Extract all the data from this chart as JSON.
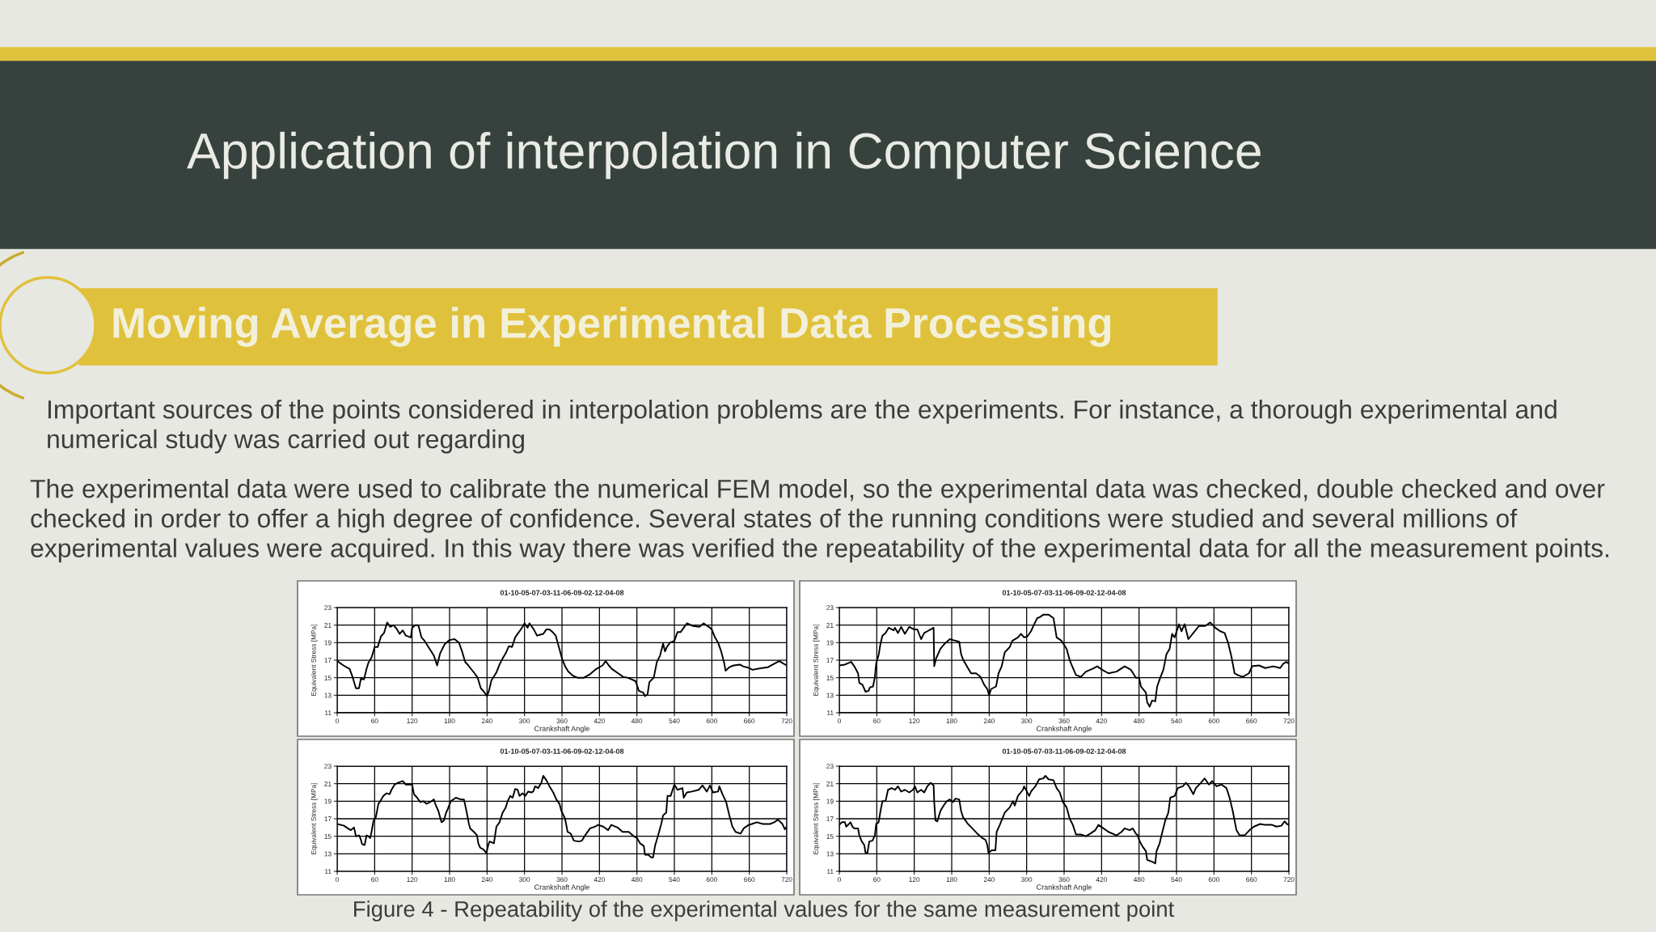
{
  "chart_data": [
    {
      "type": "other",
      "title": "Application of interpolation in Computer Science",
      "subtitle": "Moving Average in Experimental Data Processing",
      "annotations": [
        "Important sources of the points considered in interpolation problems are the experiments. For instance, a thorough experimental and numerical study was carried out regarding",
        "The experimental data were used to calibrate the numerical FEM model, so the experimental data was checked, double checked and over checked in order to offer a high degree of confidence. Several states of the running conditions were studied and several millions of experimental values were acquired. In this way there was verified the repeatability of the experimental data for all the measurement points.",
        "Figure 4 - Repeatability of the experimental values for the same measurement point"
      ]
    },
    {
      "type": "line",
      "title": "01-10-05-07-03-11-06-09-02-12-04-08",
      "xlabel": "Crankshaft Angle",
      "ylabel": "Equivalent Stress [MPa]",
      "xlim": [
        0,
        720
      ],
      "xticks": [
        0,
        60,
        120,
        180,
        240,
        300,
        360,
        420,
        480,
        540,
        600,
        660,
        720
      ],
      "ylim": [
        11,
        23
      ],
      "yticks": [
        11,
        13,
        15,
        17,
        19,
        21,
        23
      ],
      "grid": true,
      "series": [
        {
          "color": "#000000",
          "x": [
            0,
            10,
            20,
            25,
            30,
            35,
            38,
            43,
            47,
            50,
            55,
            60,
            65,
            70,
            75,
            80,
            85,
            90,
            95,
            100,
            105,
            110,
            118,
            120,
            125,
            130,
            135,
            140,
            148,
            155,
            160,
            165,
            172,
            180,
            188,
            195,
            200,
            205,
            210,
            220,
            225,
            230,
            235,
            240,
            243,
            247,
            255,
            260,
            265,
            270,
            275,
            280,
            285,
            290,
            295,
            300,
            305,
            308,
            315,
            320,
            330,
            335,
            340,
            345,
            350,
            355,
            360,
            365,
            370,
            378,
            385,
            395,
            405,
            415,
            425,
            430,
            435,
            440,
            450,
            458,
            465,
            472,
            478,
            483,
            490,
            493,
            497,
            500,
            507,
            512,
            517,
            522,
            525,
            528,
            533,
            540,
            545,
            550,
            555,
            560,
            570,
            580,
            587,
            595,
            600,
            605,
            610,
            615,
            620,
            622,
            628,
            635,
            645,
            650,
            660,
            665,
            680,
            690,
            700,
            708,
            715,
            720
          ],
          "values": [
            16.9,
            16.4,
            16.0,
            15.0,
            13.8,
            13.8,
            14.9,
            14.8,
            16.0,
            16.7,
            17.3,
            18.5,
            18.5,
            19.7,
            20.1,
            21.3,
            20.8,
            21.0,
            20.6,
            20.0,
            20.4,
            19.8,
            19.6,
            20.7,
            21.0,
            21.0,
            19.6,
            19.2,
            18.3,
            17.5,
            16.4,
            17.8,
            18.8,
            19.3,
            19.4,
            19.0,
            18.0,
            16.8,
            16.4,
            15.5,
            15.0,
            13.8,
            13.4,
            12.9,
            13.5,
            14.7,
            15.6,
            16.5,
            17.2,
            17.8,
            18.6,
            18.5,
            19.6,
            20.1,
            20.6,
            21.2,
            20.7,
            21.2,
            20.5,
            19.8,
            20.0,
            20.5,
            20.5,
            20.2,
            19.8,
            18.5,
            17.2,
            16.3,
            15.7,
            15.2,
            15.0,
            15.0,
            15.4,
            16.0,
            16.4,
            16.9,
            16.4,
            16.0,
            15.5,
            15.1,
            15.0,
            14.8,
            14.6,
            13.5,
            13.3,
            12.9,
            13.1,
            14.5,
            15.0,
            16.8,
            17.5,
            18.9,
            18.0,
            18.5,
            19.0,
            19.2,
            20.2,
            20.2,
            20.7,
            21.2,
            20.9,
            20.8,
            21.2,
            20.8,
            20.5,
            19.6,
            19.0,
            18.0,
            16.6,
            15.8,
            16.2,
            16.4,
            16.5,
            16.3,
            16.1,
            15.9,
            16.1,
            16.2,
            16.6,
            16.9,
            16.6,
            16.4
          ]
        }
      ]
    },
    {
      "type": "line",
      "title": "01-10-05-07-03-11-06-09-02-12-04-08",
      "xlabel": "Crankshaft Angle",
      "ylabel": "Equivalent Stress [MPa]",
      "xlim": [
        0,
        720
      ],
      "xticks": [
        0,
        60,
        120,
        180,
        240,
        300,
        360,
        420,
        480,
        540,
        600,
        660,
        720
      ],
      "ylim": [
        11,
        23
      ],
      "yticks": [
        11,
        13,
        15,
        17,
        19,
        21,
        23
      ],
      "grid": true,
      "series": [
        {
          "color": "#000000",
          "x": [
            0,
            9,
            19,
            24,
            30,
            32,
            37,
            42,
            47,
            49,
            54,
            57,
            59,
            63,
            66,
            69,
            74,
            79,
            87,
            89,
            94,
            99,
            105,
            112,
            120,
            125,
            131,
            136,
            141,
            146,
            151,
            152,
            155,
            162,
            169,
            177,
            182,
            192,
            195,
            198,
            206,
            211,
            219,
            226,
            232,
            237,
            240,
            243,
            251,
            255,
            260,
            265,
            273,
            277,
            286,
            291,
            296,
            301,
            307,
            312,
            317,
            321,
            327,
            335,
            343,
            346,
            348,
            356,
            364,
            369,
            373,
            379,
            387,
            395,
            405,
            413,
            421,
            431,
            444,
            457,
            467,
            475,
            480,
            483,
            491,
            493,
            497,
            501,
            506,
            509,
            514,
            519,
            524,
            529,
            533,
            537,
            544,
            548,
            553,
            559,
            567,
            576,
            586,
            594,
            602,
            610,
            617,
            623,
            628,
            633,
            638,
            646,
            656,
            661,
            672,
            682,
            695,
            706,
            711,
            716,
            720
          ],
          "values": [
            16.4,
            16.5,
            16.8,
            16.3,
            15.5,
            14.4,
            14.2,
            13.4,
            13.5,
            13.9,
            14.0,
            15.1,
            16.6,
            17.6,
            18.9,
            19.8,
            20.1,
            20.7,
            20.4,
            20.7,
            20.1,
            20.8,
            20.0,
            20.8,
            20.5,
            20.5,
            19.4,
            20.1,
            20.3,
            20.5,
            20.7,
            16.3,
            17.2,
            18.3,
            18.9,
            19.4,
            19.3,
            19.1,
            17.7,
            17.1,
            16.1,
            15.5,
            15.5,
            15.1,
            14.2,
            13.7,
            13.0,
            13.7,
            14.0,
            15.5,
            16.3,
            17.9,
            18.5,
            19.2,
            19.6,
            20.0,
            19.6,
            19.7,
            20.3,
            21.1,
            21.8,
            21.9,
            22.2,
            22.2,
            21.8,
            20.5,
            19.6,
            19.2,
            18.3,
            17.0,
            16.3,
            15.3,
            15.1,
            15.7,
            16.0,
            16.3,
            15.9,
            15.5,
            15.7,
            16.3,
            15.9,
            15.0,
            15.0,
            14.0,
            13.3,
            12.2,
            11.7,
            12.4,
            12.3,
            14.0,
            15.0,
            15.9,
            17.7,
            18.3,
            20.0,
            19.6,
            21.1,
            20.3,
            21.1,
            19.4,
            20.1,
            20.9,
            20.9,
            21.3,
            20.7,
            20.3,
            20.1,
            18.9,
            17.4,
            15.5,
            15.3,
            15.1,
            15.5,
            16.3,
            16.4,
            16.1,
            16.3,
            16.1,
            16.6,
            16.8,
            16.6
          ]
        }
      ]
    },
    {
      "type": "line",
      "title": "01-10-05-07-03-11-06-09-02-12-04-08",
      "xlabel": "Crankshaft Angle",
      "ylabel": "Equivalent Stress [MPa]",
      "xlim": [
        0,
        720
      ],
      "xticks": [
        0,
        60,
        120,
        180,
        240,
        300,
        360,
        420,
        480,
        540,
        600,
        660,
        720
      ],
      "ylim": [
        11,
        23
      ],
      "yticks": [
        11,
        13,
        15,
        17,
        19,
        21,
        23
      ],
      "grid": true,
      "series": [
        {
          "color": "#000000",
          "x": [
            0,
            6,
            11,
            17,
            22,
            27,
            30,
            35,
            37,
            40,
            44,
            47,
            50,
            53,
            55,
            58,
            62,
            66,
            69,
            74,
            79,
            84,
            87,
            92,
            97,
            105,
            110,
            118,
            120,
            123,
            128,
            133,
            138,
            143,
            151,
            155,
            157,
            162,
            167,
            171,
            174,
            177,
            182,
            190,
            198,
            203,
            207,
            211,
            213,
            219,
            224,
            226,
            229,
            234,
            239,
            242,
            244,
            251,
            255,
            260,
            265,
            270,
            273,
            277,
            281,
            285,
            289,
            292,
            297,
            301,
            306,
            311,
            314,
            317,
            322,
            327,
            330,
            335,
            340,
            346,
            351,
            356,
            359,
            365,
            369,
            374,
            379,
            387,
            392,
            397,
            405,
            413,
            418,
            426,
            434,
            439,
            449,
            457,
            467,
            475,
            480,
            485,
            491,
            493,
            498,
            503,
            506,
            509,
            514,
            519,
            522,
            527,
            529,
            534,
            540,
            545,
            553,
            555,
            560,
            568,
            579,
            585,
            592,
            597,
            602,
            610,
            612,
            617,
            623,
            628,
            633,
            638,
            646,
            651,
            659,
            664,
            672,
            682,
            693,
            700,
            706,
            713,
            717,
            720
          ],
          "values": [
            16.4,
            16.3,
            16.2,
            15.9,
            15.7,
            16.0,
            15.0,
            15.1,
            14.8,
            14.1,
            14.0,
            15.1,
            15.0,
            14.8,
            15.5,
            16.7,
            17.2,
            18.7,
            19.0,
            19.6,
            19.9,
            19.8,
            20.3,
            20.9,
            21.1,
            21.3,
            20.9,
            20.9,
            20.9,
            19.8,
            19.4,
            18.9,
            19.0,
            18.7,
            19.0,
            19.2,
            18.7,
            17.9,
            16.6,
            16.8,
            17.6,
            18.1,
            19.0,
            19.4,
            19.2,
            19.2,
            17.9,
            16.4,
            15.9,
            15.5,
            15.1,
            14.2,
            13.7,
            13.5,
            13.1,
            14.0,
            14.4,
            14.2,
            16.1,
            16.6,
            17.7,
            18.3,
            19.0,
            19.6,
            19.4,
            20.4,
            20.3,
            19.6,
            19.9,
            19.6,
            20.1,
            20.0,
            20.1,
            20.7,
            20.5,
            21.1,
            21.9,
            21.4,
            20.7,
            20.0,
            19.2,
            18.7,
            17.9,
            17.0,
            15.5,
            15.3,
            14.5,
            14.4,
            14.5,
            15.1,
            15.9,
            16.1,
            16.3,
            16.1,
            15.7,
            16.3,
            16.0,
            15.5,
            15.5,
            15.0,
            14.8,
            14.2,
            13.9,
            12.9,
            12.9,
            12.6,
            12.6,
            13.9,
            15.1,
            16.4,
            17.4,
            17.7,
            19.6,
            19.6,
            20.9,
            20.3,
            20.5,
            19.4,
            20.0,
            20.1,
            20.3,
            20.8,
            20.1,
            20.8,
            20.0,
            20.1,
            20.7,
            19.8,
            18.9,
            17.4,
            16.1,
            15.5,
            15.3,
            15.9,
            16.3,
            16.4,
            16.6,
            16.4,
            16.4,
            16.6,
            16.9,
            16.4,
            15.8,
            16.1
          ]
        }
      ]
    },
    {
      "type": "line",
      "title": "01-10-05-07-03-11-06-09-02-12-04-08",
      "xlabel": "Crankshaft Angle",
      "ylabel": "Equivalent Stress [MPa]",
      "xlim": [
        0,
        720
      ],
      "xticks": [
        0,
        60,
        120,
        180,
        240,
        300,
        360,
        420,
        480,
        540,
        600,
        660,
        720
      ],
      "ylim": [
        11,
        23
      ],
      "yticks": [
        11,
        13,
        15,
        17,
        19,
        21,
        23
      ],
      "grid": true,
      "series": [
        {
          "color": "#000000",
          "x": [
            0,
            4,
            9,
            11,
            14,
            18,
            21,
            24,
            30,
            32,
            36,
            40,
            42,
            45,
            48,
            53,
            57,
            59,
            63,
            66,
            69,
            74,
            78,
            84,
            89,
            94,
            99,
            105,
            112,
            118,
            121,
            125,
            131,
            136,
            141,
            146,
            151,
            152,
            154,
            157,
            162,
            167,
            172,
            177,
            182,
            186,
            192,
            195,
            198,
            206,
            213,
            221,
            229,
            234,
            237,
            239,
            244,
            250,
            252,
            257,
            265,
            273,
            278,
            281,
            286,
            294,
            296,
            304,
            307,
            314,
            320,
            327,
            330,
            335,
            343,
            348,
            353,
            358,
            364,
            369,
            374,
            379,
            387,
            395,
            402,
            410,
            415,
            423,
            431,
            444,
            452,
            457,
            465,
            470,
            475,
            478,
            480,
            485,
            491,
            493,
            501,
            506,
            508,
            513,
            516,
            522,
            527,
            530,
            537,
            542,
            550,
            555,
            560,
            567,
            571,
            579,
            585,
            592,
            597,
            604,
            612,
            620,
            625,
            630,
            636,
            641,
            649,
            657,
            664,
            674,
            682,
            693,
            700,
            708,
            713,
            717,
            720
          ],
          "values": [
            16.3,
            16.6,
            16.6,
            16.1,
            16.3,
            16.6,
            16.1,
            15.9,
            15.9,
            15.1,
            14.4,
            14.0,
            13.1,
            13.1,
            14.4,
            14.5,
            15.1,
            16.4,
            16.6,
            17.9,
            19.0,
            19.0,
            20.3,
            20.5,
            20.3,
            20.7,
            20.1,
            20.3,
            20.0,
            20.3,
            20.7,
            20.0,
            20.3,
            20.0,
            20.7,
            21.1,
            20.8,
            18.9,
            16.8,
            16.7,
            17.9,
            18.5,
            19.0,
            19.2,
            18.9,
            19.3,
            19.2,
            17.9,
            17.2,
            16.4,
            15.9,
            15.3,
            14.8,
            14.6,
            14.0,
            13.1,
            13.4,
            13.4,
            15.5,
            16.3,
            17.7,
            18.3,
            19.0,
            18.5,
            19.6,
            20.3,
            20.7,
            19.6,
            20.1,
            20.7,
            21.5,
            21.6,
            21.9,
            21.5,
            21.4,
            20.5,
            20.0,
            18.9,
            18.3,
            17.0,
            16.3,
            15.2,
            15.2,
            15.0,
            15.3,
            15.7,
            16.3,
            15.9,
            15.5,
            15.1,
            15.5,
            15.9,
            15.7,
            15.9,
            15.3,
            15.1,
            14.6,
            13.9,
            13.3,
            12.3,
            12.1,
            11.9,
            13.3,
            14.2,
            15.1,
            16.8,
            17.7,
            19.4,
            19.6,
            20.5,
            20.7,
            21.1,
            20.7,
            19.8,
            20.5,
            21.1,
            21.6,
            20.9,
            21.3,
            20.7,
            20.9,
            20.5,
            19.4,
            17.9,
            15.7,
            15.1,
            15.1,
            15.7,
            16.1,
            16.4,
            16.3,
            16.3,
            16.1,
            16.2,
            16.7,
            16.4,
            16.3
          ]
        }
      ]
    }
  ]
}
